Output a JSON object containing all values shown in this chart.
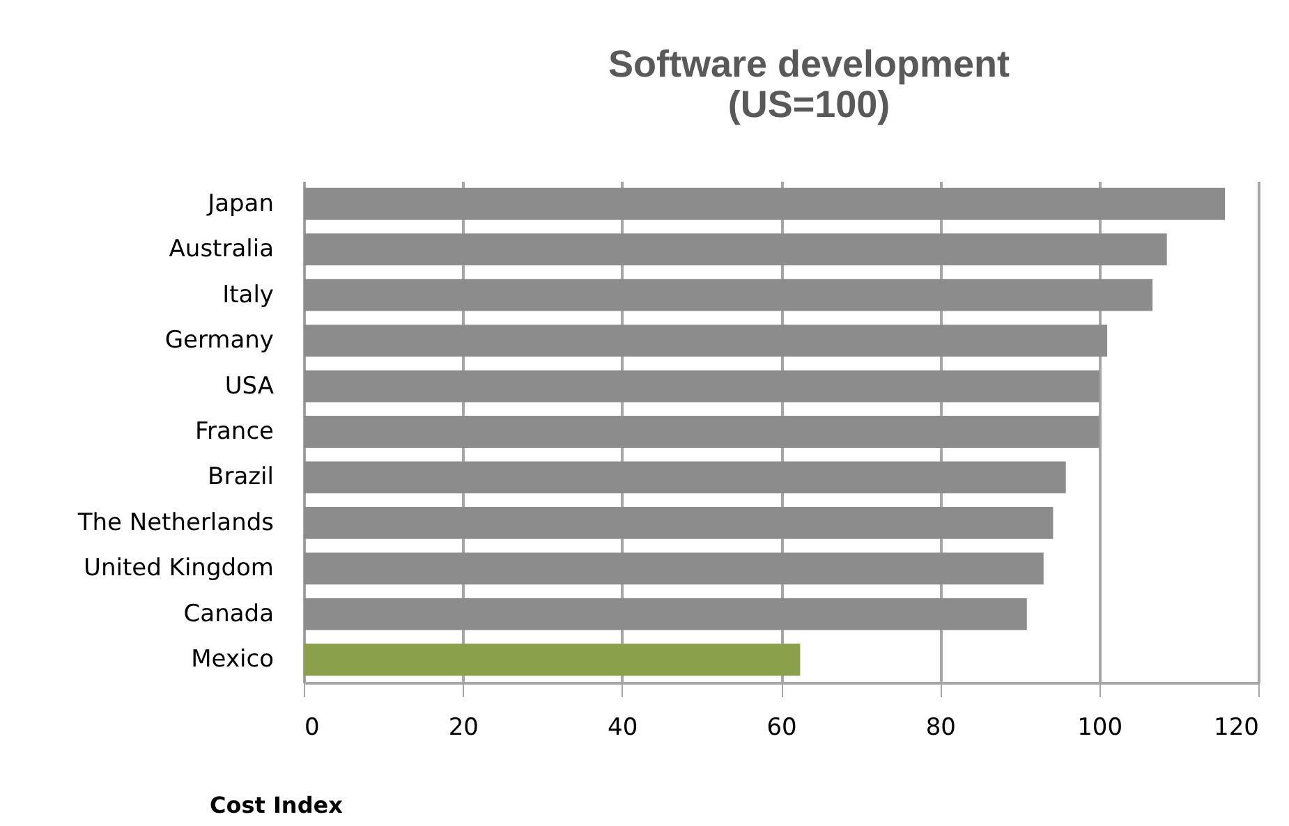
{
  "chart_data": {
    "type": "bar",
    "orientation": "horizontal",
    "title": "Software development\n(US=100)",
    "xlabel": "Cost Index",
    "categories": [
      "Japan",
      "Australia",
      "Italy",
      "Germany",
      "USA",
      "France",
      "Brazil",
      "The Netherlands",
      "United Kingdom",
      "Canada",
      "Mexico"
    ],
    "values": [
      115.8,
      108.5,
      106.7,
      101.0,
      100,
      100,
      95.8,
      94.2,
      93.0,
      90.9,
      62.4
    ],
    "colors": [
      "#8c8c8c",
      "#8c8c8c",
      "#8c8c8c",
      "#8c8c8c",
      "#8c8c8c",
      "#8c8c8c",
      "#8c8c8c",
      "#8c8c8c",
      "#8c8c8c",
      "#8c8c8c",
      "#8aa04a"
    ],
    "xlim": [
      0,
      120
    ],
    "xticks": [
      0,
      20,
      40,
      60,
      80,
      100,
      120
    ],
    "grid": "x"
  }
}
